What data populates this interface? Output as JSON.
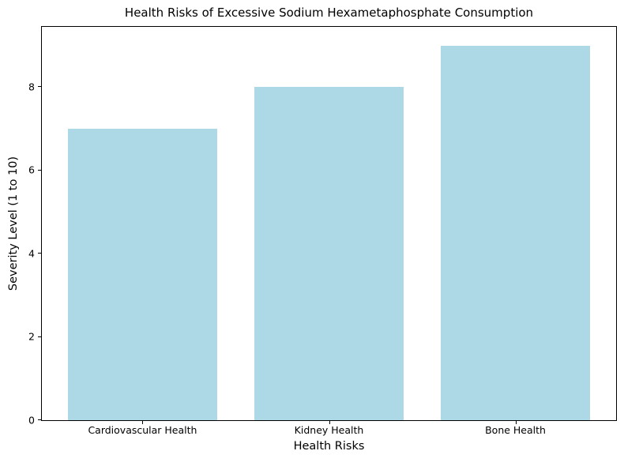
{
  "chart_data": {
    "type": "bar",
    "title": "Health Risks of Excessive Sodium Hexametaphosphate Consumption",
    "xlabel": "Health Risks",
    "ylabel": "Severity Level (1 to 10)",
    "categories": [
      "Cardiovascular Health",
      "Kidney Health",
      "Bone Health"
    ],
    "values": [
      7,
      8,
      9
    ],
    "yticks": [
      0,
      2,
      4,
      6,
      8
    ],
    "ylim": [
      0,
      9.45
    ],
    "xlim": [
      -0.54,
      2.54
    ],
    "bar_width": 0.8,
    "bar_color": "#ADD8E6",
    "text_color": "#000000",
    "background_color": "#FFFFFF",
    "grid": false,
    "legend": "none"
  }
}
